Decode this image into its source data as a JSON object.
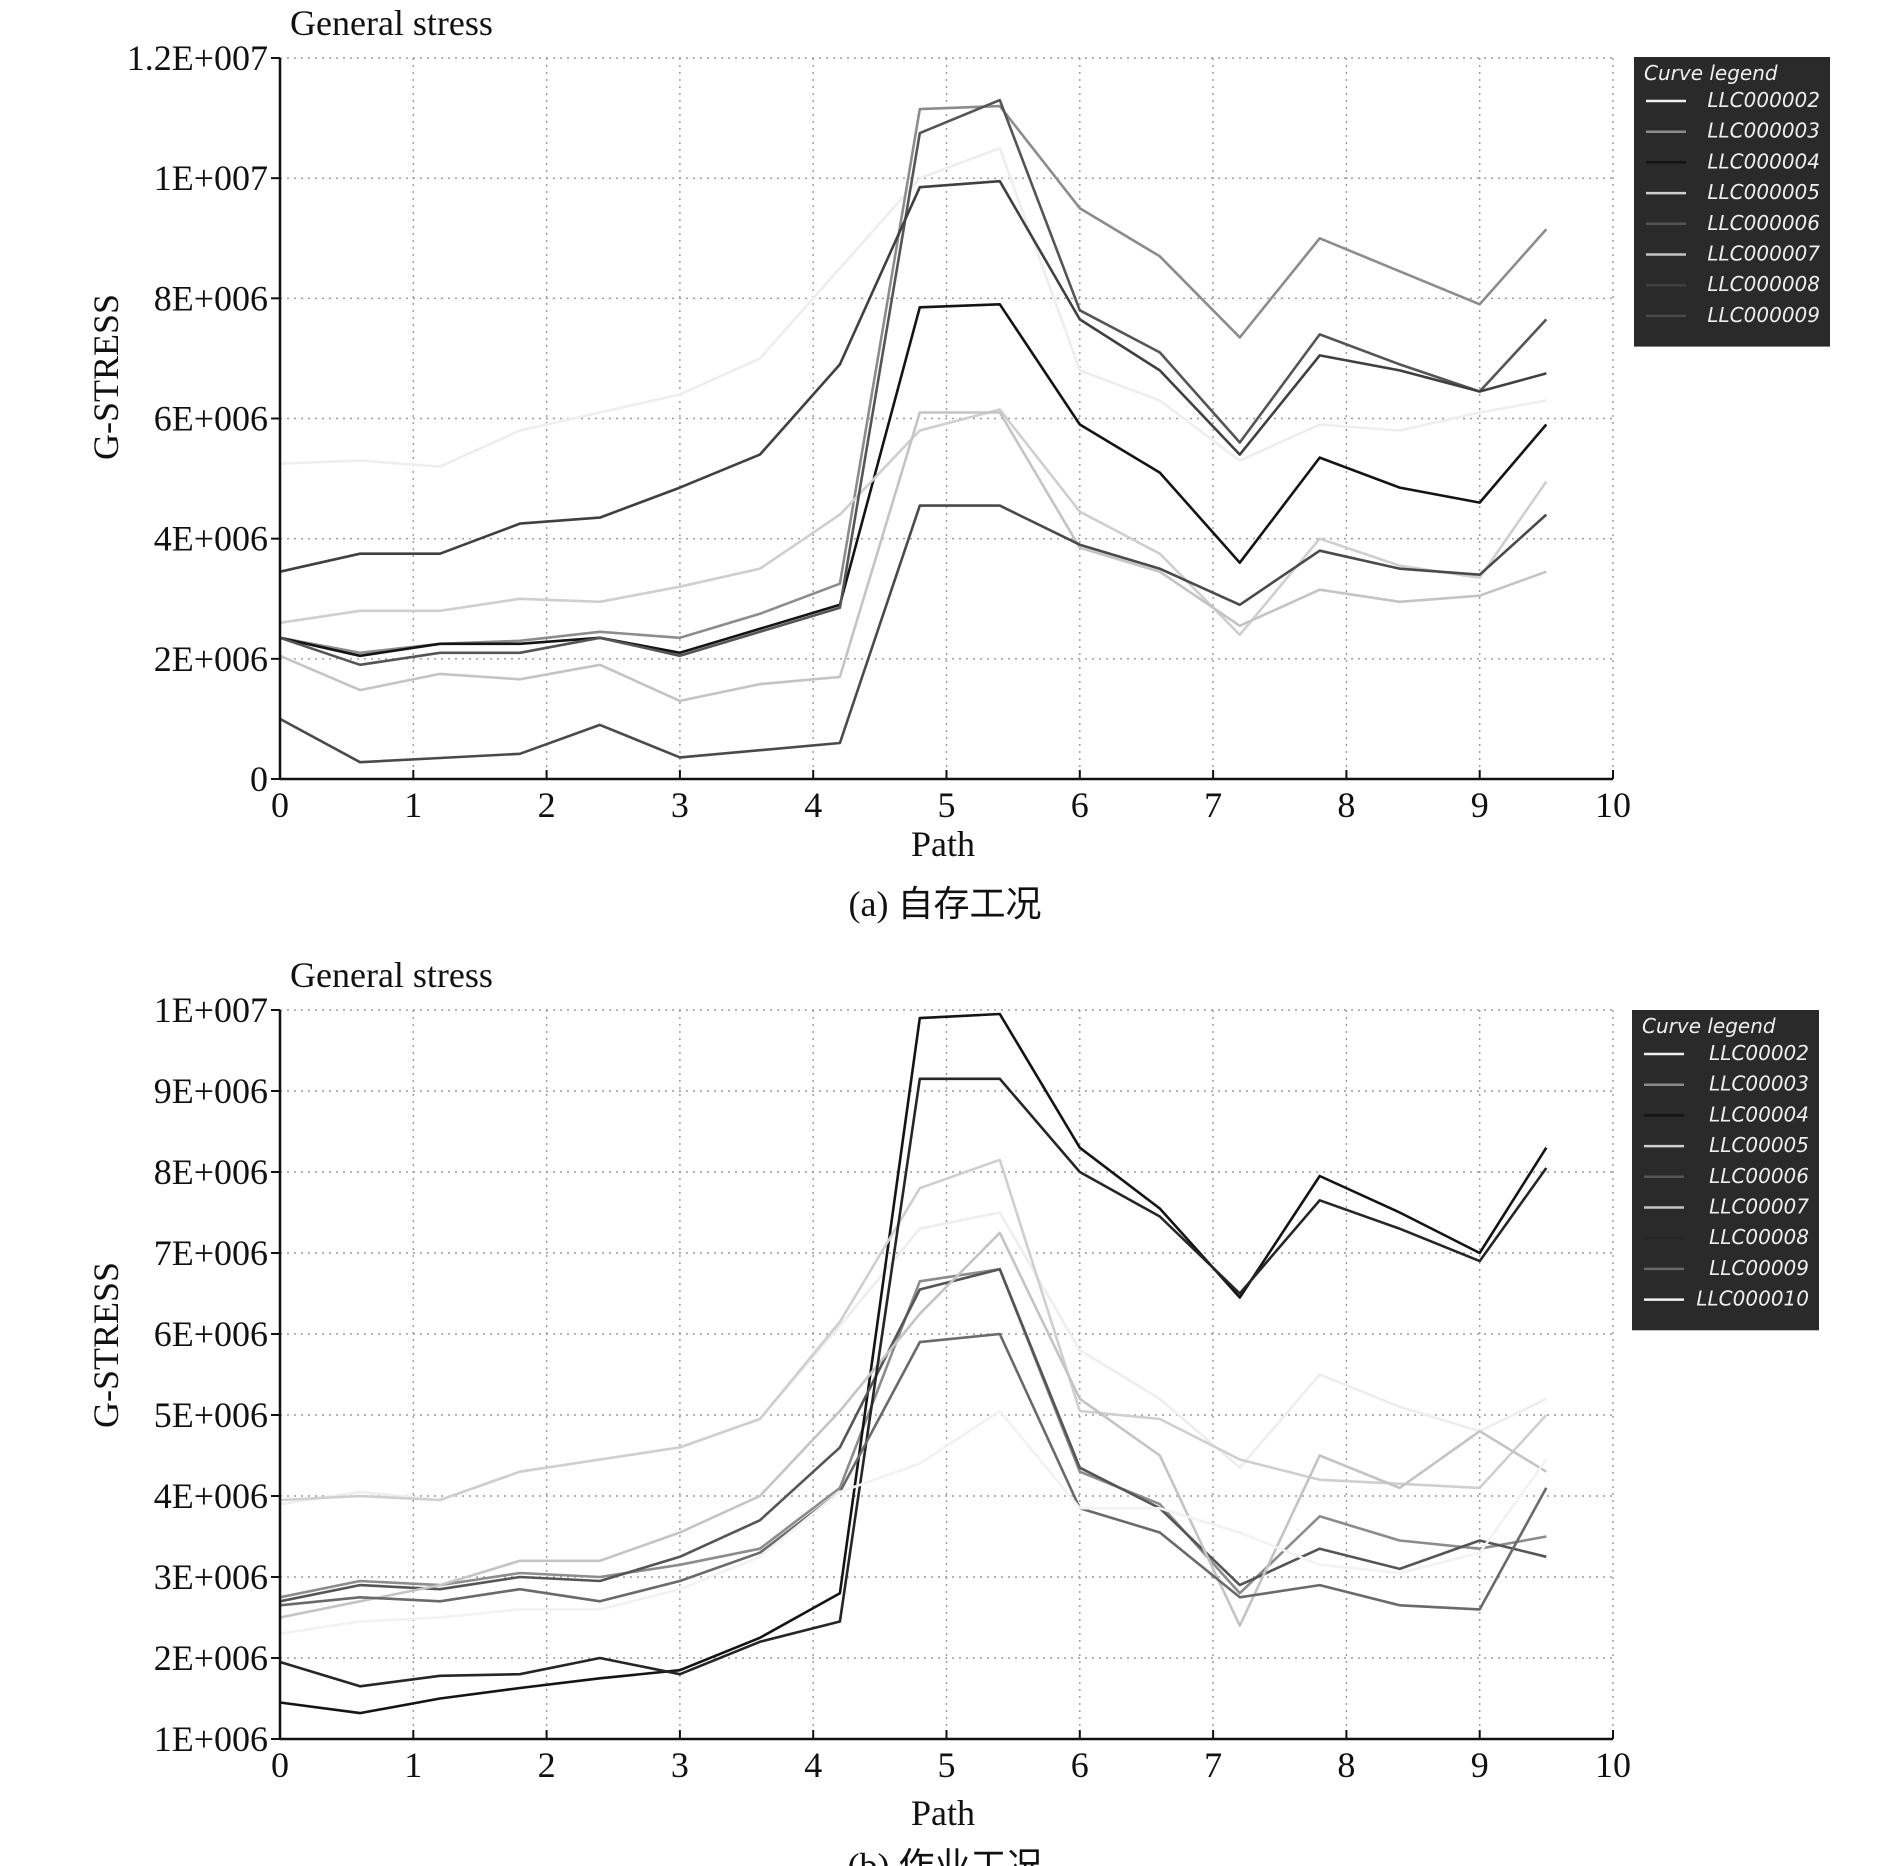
{
  "chart_data": [
    {
      "type": "line",
      "title": "General stress",
      "xlabel": "Path",
      "ylabel": "G-STRESS",
      "caption": "(a) 自存工况",
      "xlim": [
        0,
        10
      ],
      "ylim": [
        0,
        12000000
      ],
      "xticks": [
        "0",
        "1",
        "2",
        "3",
        "4",
        "5",
        "6",
        "7",
        "8",
        "9",
        "10"
      ],
      "yticks": [
        {
          "value": 0,
          "label": "0"
        },
        {
          "value": 2000000,
          "label": "2E+006"
        },
        {
          "value": 4000000,
          "label": "4E+006"
        },
        {
          "value": 6000000,
          "label": "6E+006"
        },
        {
          "value": 8000000,
          "label": "8E+006"
        },
        {
          "value": 10000000,
          "label": "1E+007"
        },
        {
          "value": 12000000,
          "label": "1.2E+007"
        }
      ],
      "grid": true,
      "legend_title": "Curve legend",
      "legend_position": "top-right",
      "x": [
        0,
        0.6,
        1.2,
        1.8,
        2.4,
        3.0,
        3.6,
        4.2,
        4.8,
        5.4,
        6.0,
        6.6,
        7.2,
        7.8,
        8.4,
        9.0,
        9.5
      ],
      "series": [
        {
          "name": "LLC000002",
          "color": "#eeeeee",
          "values": [
            5250000,
            5300000,
            5200000,
            5800000,
            6100000,
            6400000,
            7000000,
            8500000,
            10000000,
            10500000,
            6800000,
            6300000,
            5300000,
            5900000,
            5800000,
            6100000,
            6300000
          ]
        },
        {
          "name": "LLC000003",
          "color": "#8c8c8c",
          "values": [
            2350000,
            2100000,
            2250000,
            2300000,
            2450000,
            2350000,
            2750000,
            3250000,
            11150000,
            11200000,
            9500000,
            8700000,
            7350000,
            9000000,
            8450000,
            7900000,
            9150000
          ]
        },
        {
          "name": "LLC000004",
          "color": "#141414",
          "values": [
            2350000,
            2050000,
            2250000,
            2250000,
            2350000,
            2100000,
            2500000,
            2900000,
            7850000,
            7900000,
            5900000,
            5100000,
            3600000,
            5350000,
            4850000,
            4600000,
            5900000
          ]
        },
        {
          "name": "LLC000005",
          "color": "#cfcfcf",
          "values": [
            2600000,
            2800000,
            2800000,
            3000000,
            2950000,
            3200000,
            3500000,
            4400000,
            5800000,
            6150000,
            4450000,
            3750000,
            2400000,
            4000000,
            3550000,
            3350000,
            4950000
          ]
        },
        {
          "name": "LLC000006",
          "color": "#555555",
          "values": [
            2350000,
            1900000,
            2100000,
            2100000,
            2350000,
            2050000,
            2450000,
            2850000,
            10750000,
            11300000,
            7800000,
            7100000,
            5600000,
            7400000,
            6900000,
            6450000,
            7650000
          ]
        },
        {
          "name": "LLC000007",
          "color": "#c4c4c4",
          "values": [
            2050000,
            1480000,
            1750000,
            1660000,
            1900000,
            1300000,
            1580000,
            1700000,
            6100000,
            6100000,
            3850000,
            3450000,
            2550000,
            3150000,
            2950000,
            3050000,
            3450000
          ]
        },
        {
          "name": "LLC000008",
          "color": "#404040",
          "values": [
            3450000,
            3750000,
            3750000,
            4250000,
            4350000,
            4850000,
            5400000,
            6900000,
            9850000,
            9950000,
            7650000,
            6800000,
            5400000,
            7050000,
            6800000,
            6450000,
            6750000
          ]
        },
        {
          "name": "LLC000009",
          "color": "#4a4a4a",
          "values": [
            1000000,
            280000,
            350000,
            420000,
            900000,
            360000,
            480000,
            600000,
            4550000,
            4550000,
            3900000,
            3500000,
            2900000,
            3800000,
            3500000,
            3400000,
            4400000
          ]
        }
      ]
    },
    {
      "type": "line",
      "title": "General stress",
      "xlabel": "Path",
      "ylabel": "G-STRESS",
      "caption": "(b) 作业工况",
      "xlim": [
        0,
        10
      ],
      "ylim": [
        1000000,
        10000000
      ],
      "xticks": [
        "0",
        "1",
        "2",
        "3",
        "4",
        "5",
        "6",
        "7",
        "8",
        "9",
        "10"
      ],
      "yticks": [
        {
          "value": 1000000,
          "label": "1E+006"
        },
        {
          "value": 2000000,
          "label": "2E+006"
        },
        {
          "value": 3000000,
          "label": "3E+006"
        },
        {
          "value": 4000000,
          "label": "4E+006"
        },
        {
          "value": 5000000,
          "label": "5E+006"
        },
        {
          "value": 6000000,
          "label": "6E+006"
        },
        {
          "value": 7000000,
          "label": "7E+006"
        },
        {
          "value": 8000000,
          "label": "8E+006"
        },
        {
          "value": 9000000,
          "label": "9E+006"
        },
        {
          "value": 10000000,
          "label": "1E+007"
        }
      ],
      "grid": true,
      "legend_title": "Curve legend",
      "legend_position": "top-right",
      "x": [
        0,
        0.6,
        1.2,
        1.8,
        2.4,
        3.0,
        3.6,
        4.2,
        4.8,
        5.4,
        6.0,
        6.6,
        7.2,
        7.8,
        8.4,
        9.0,
        9.5
      ],
      "series": [
        {
          "name": "LLC00002",
          "color": "#eeeeee",
          "values": [
            3900000,
            4050000,
            3950000,
            4300000,
            4450000,
            4600000,
            4950000,
            6100000,
            7300000,
            7500000,
            5800000,
            5200000,
            4350000,
            5500000,
            5100000,
            4800000,
            5200000
          ]
        },
        {
          "name": "LLC00003",
          "color": "#8c8c8c",
          "values": [
            2750000,
            2950000,
            2900000,
            3050000,
            3000000,
            3150000,
            3350000,
            4100000,
            6650000,
            6800000,
            4300000,
            3900000,
            2800000,
            3750000,
            3450000,
            3350000,
            3500000
          ]
        },
        {
          "name": "LLC00004",
          "color": "#141414",
          "values": [
            1450000,
            1320000,
            1500000,
            1630000,
            1750000,
            1850000,
            2250000,
            2800000,
            9900000,
            9950000,
            8300000,
            7550000,
            6450000,
            7950000,
            7500000,
            7000000,
            8300000
          ]
        },
        {
          "name": "LLC00005",
          "color": "#cfcfcf",
          "values": [
            3950000,
            4000000,
            3950000,
            4300000,
            4450000,
            4600000,
            4950000,
            6150000,
            7800000,
            8150000,
            5050000,
            4950000,
            4450000,
            4200000,
            4150000,
            4100000,
            5000000
          ]
        },
        {
          "name": "LLC00006",
          "color": "#555555",
          "values": [
            2700000,
            2900000,
            2850000,
            3000000,
            2950000,
            3250000,
            3700000,
            4600000,
            6550000,
            6800000,
            4350000,
            3850000,
            2900000,
            3350000,
            3100000,
            3450000,
            3250000
          ]
        },
        {
          "name": "LLC00007",
          "color": "#c4c4c4",
          "values": [
            2500000,
            2700000,
            2900000,
            3200000,
            3200000,
            3550000,
            4000000,
            5050000,
            6250000,
            7250000,
            5200000,
            4500000,
            2400000,
            4500000,
            4100000,
            4800000,
            4300000
          ]
        },
        {
          "name": "LLC00008",
          "color": "#262626",
          "values": [
            1950000,
            1650000,
            1780000,
            1800000,
            2000000,
            1800000,
            2200000,
            2450000,
            9150000,
            9150000,
            8000000,
            7450000,
            6500000,
            7650000,
            7300000,
            6900000,
            8050000
          ]
        },
        {
          "name": "LLC00009",
          "color": "#6a6a6a",
          "values": [
            2650000,
            2750000,
            2700000,
            2850000,
            2700000,
            2950000,
            3300000,
            4050000,
            5900000,
            6000000,
            3850000,
            3550000,
            2750000,
            2900000,
            2650000,
            2600000,
            4100000
          ]
        },
        {
          "name": "LLC000010",
          "color": "#f2f2f2",
          "values": [
            2300000,
            2450000,
            2500000,
            2600000,
            2600000,
            2850000,
            3250000,
            4050000,
            4400000,
            5050000,
            3850000,
            3850000,
            3550000,
            3150000,
            3050000,
            3300000,
            4450000
          ]
        }
      ]
    }
  ]
}
